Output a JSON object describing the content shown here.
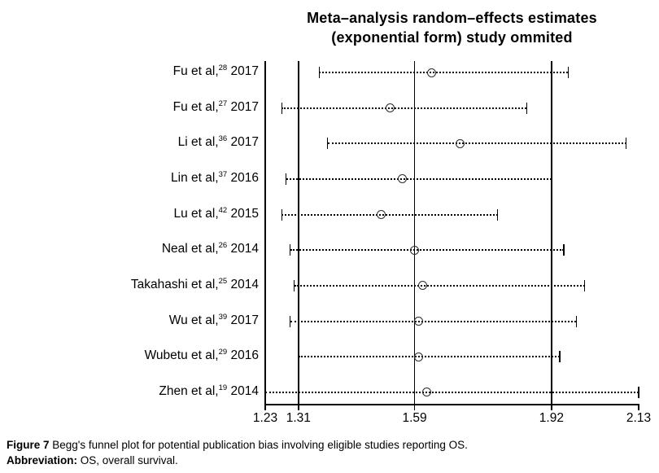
{
  "title": {
    "line1": "Meta–analysis random–effects estimates",
    "line2": "(exponential form) study ommited"
  },
  "chart_data": {
    "type": "forest-leave-one-out",
    "orientation": "horizontal",
    "x_axis": {
      "min": 1.23,
      "max": 2.13,
      "ticks": [
        1.23,
        1.31,
        1.59,
        1.92,
        2.13
      ],
      "tick_labels": [
        "1.23",
        "1.31",
        "1.59",
        "1.92",
        "2.13"
      ]
    },
    "reference_lines": [
      1.31,
      1.59,
      1.92
    ],
    "studies": [
      {
        "label": "Fu et al,",
        "ref": "28",
        "year": "2017",
        "lower": 1.36,
        "estimate": 1.63,
        "upper": 1.96
      },
      {
        "label": "Fu et al,",
        "ref": "27",
        "year": "2017",
        "lower": 1.27,
        "estimate": 1.53,
        "upper": 1.86
      },
      {
        "label": "Li et al,",
        "ref": "36",
        "year": "2017",
        "lower": 1.38,
        "estimate": 1.7,
        "upper": 2.1
      },
      {
        "label": "Lin et al,",
        "ref": "37",
        "year": "2016",
        "lower": 1.28,
        "estimate": 1.56,
        "upper": 1.92
      },
      {
        "label": "Lu et al,",
        "ref": "42",
        "year": "2015",
        "lower": 1.27,
        "estimate": 1.51,
        "upper": 1.79
      },
      {
        "label": "Neal et al,",
        "ref": "26",
        "year": "2014",
        "lower": 1.29,
        "estimate": 1.59,
        "upper": 1.95
      },
      {
        "label": "Takahashi et al,",
        "ref": "25",
        "year": "2014",
        "lower": 1.3,
        "estimate": 1.61,
        "upper": 2.0
      },
      {
        "label": "Wu et al,",
        "ref": "39",
        "year": "2017",
        "lower": 1.29,
        "estimate": 1.6,
        "upper": 1.98
      },
      {
        "label": "Wubetu et al,",
        "ref": "29",
        "year": "2016",
        "lower": 1.31,
        "estimate": 1.6,
        "upper": 1.94
      },
      {
        "label": "Zhen et al,",
        "ref": "19",
        "year": "2014",
        "lower": 1.23,
        "estimate": 1.62,
        "upper": 2.13
      }
    ]
  },
  "caption": {
    "figure_label": "Figure 7",
    "figure_text": " Begg's funnel plot for potential publication bias involving eligible studies reporting OS.",
    "abbrev_label": "Abbreviation:",
    "abbrev_text": " OS, overall survival."
  },
  "colors": {
    "line": "#000000",
    "marker_outline": "#2b2b2b",
    "background": "#ffffff"
  }
}
